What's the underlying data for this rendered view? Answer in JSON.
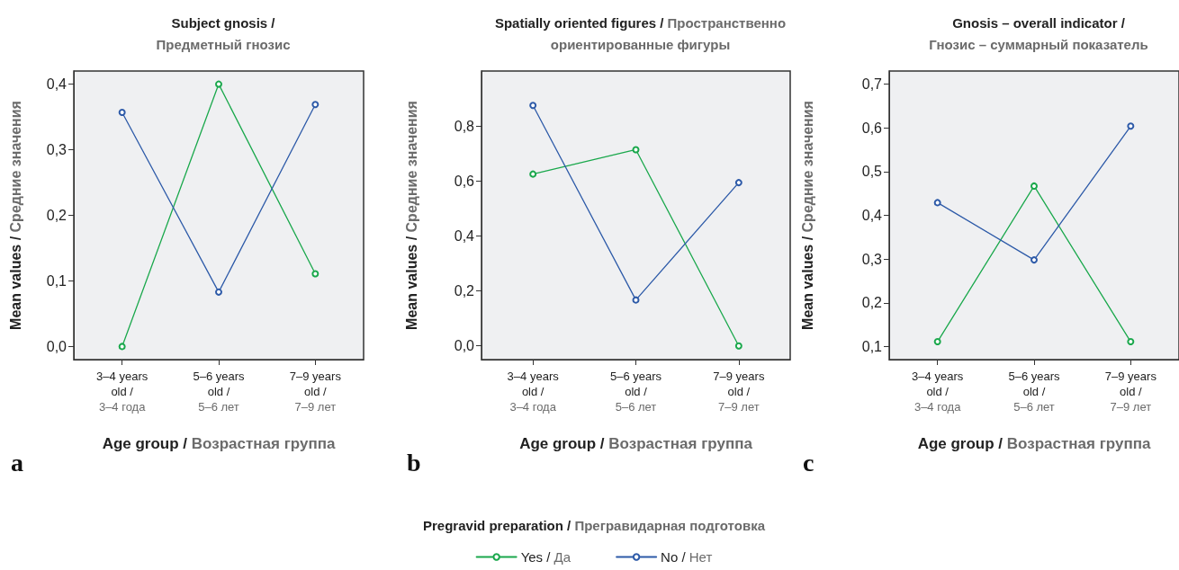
{
  "chart_data": [
    {
      "type": "line",
      "title": "Subject gnosis /\nПредметный гнозис",
      "xlabel": "Age group / Возрастная группа",
      "ylabel": "Mean values / Средние значения",
      "categories": [
        "3–4 years\nold /\n3–4 года",
        "5–6 years\nold /\n5–6 лет",
        "7–9 years\nold /\n7–9 лет"
      ],
      "series": [
        {
          "color": "#1aa84c",
          "values": [
            0.0,
            0.4,
            0.111
          ]
        },
        {
          "color": "#2d5aa8",
          "values": [
            0.357,
            0.083,
            0.369
          ]
        }
      ],
      "ylim": [
        -0.02,
        0.42
      ],
      "yticks": [
        {
          "value": 0,
          "label": "0,0"
        },
        {
          "value": 0.1,
          "label": "0,1"
        },
        {
          "value": 0.2,
          "label": "0,2"
        },
        {
          "value": 0.3,
          "label": "0,3"
        },
        {
          "value": 0.4,
          "label": "0,4"
        }
      ],
      "marker": "circle",
      "grid": false,
      "legend": false,
      "annotations": [
        "a"
      ]
    },
    {
      "type": "line",
      "title": "Spatially oriented figures / Пространственно\nориентированные фигуры",
      "xlabel": "Age group / Возрастная группа",
      "ylabel": "Mean values / Средние значения",
      "categories": [
        "3–4 years\nold /\n3–4 года",
        "5–6 years\nold /\n5–6 лет",
        "7–9 years\nold /\n7–9 лет"
      ],
      "series": [
        {
          "name": "Yes / Да",
          "color": "#1aa84c",
          "values": [
            0.625,
            0.714,
            0.0
          ]
        },
        {
          "name": "No / Нет",
          "color": "#2d5aa8",
          "values": [
            0.875,
            0.167,
            0.594
          ]
        }
      ],
      "ylim": [
        -0.05,
        1.0
      ],
      "yticks": [
        {
          "value": 0,
          "label": "0,0"
        },
        {
          "value": 0.2,
          "label": "0,2"
        },
        {
          "value": 0.4,
          "label": "0,4"
        },
        {
          "value": 0.6,
          "label": "0,6"
        },
        {
          "value": 0.8,
          "label": "0,8"
        }
      ],
      "marker": "circle",
      "grid": false,
      "legend": "bottom",
      "legend_title": "Pregravid preparation / Прегравидарная подготовка",
      "annotations": [
        "b"
      ]
    },
    {
      "type": "line",
      "title": "Gnosis – overall indicator /\nГнозис – суммарный показатель",
      "xlabel": "Age group / Возрастная группа",
      "ylabel": "Mean values / Средние значения",
      "categories": [
        "3–4 years\nold /\n3–4 года",
        "5–6 years\nold /\n5–6 лет",
        "7–9 years\nold /\n7–9 лет"
      ],
      "series": [
        {
          "color": "#1aa84c",
          "values": [
            0.111,
            0.467,
            0.111
          ]
        },
        {
          "color": "#2d5aa8",
          "values": [
            0.429,
            0.298,
            0.604
          ]
        }
      ],
      "ylim": [
        0.07,
        0.73
      ],
      "yticks": [
        {
          "value": 0.1,
          "label": "0,1"
        },
        {
          "value": 0.2,
          "label": "0,2"
        },
        {
          "value": 0.3,
          "label": "0,3"
        },
        {
          "value": 0.4,
          "label": "0,4"
        },
        {
          "value": 0.5,
          "label": "0,5"
        },
        {
          "value": 0.6,
          "label": "0,6"
        },
        {
          "value": 0.7,
          "label": "0,7"
        }
      ],
      "marker": "circle",
      "grid": false,
      "legend": false,
      "annotations": [
        "c"
      ]
    }
  ]
}
